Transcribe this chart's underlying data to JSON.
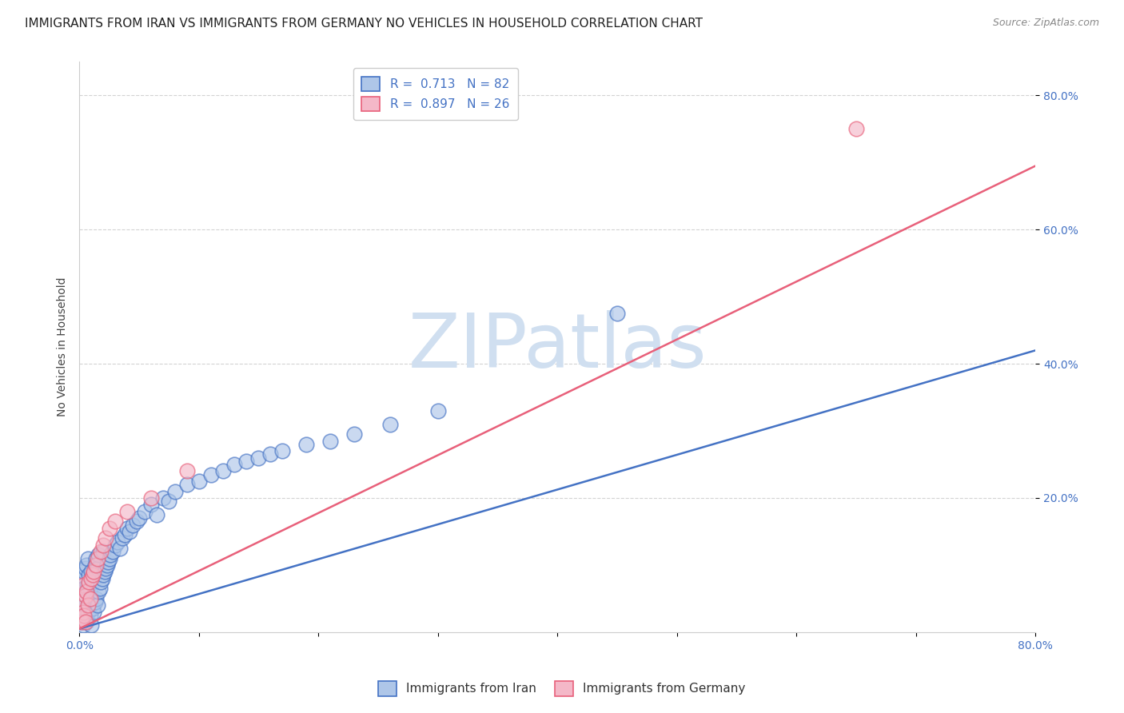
{
  "title": "IMMIGRANTS FROM IRAN VS IMMIGRANTS FROM GERMANY NO VEHICLES IN HOUSEHOLD CORRELATION CHART",
  "source": "Source: ZipAtlas.com",
  "ylabel": "No Vehicles in Household",
  "xlim": [
    0.0,
    0.8
  ],
  "ylim": [
    0.0,
    0.85
  ],
  "ytick_positions": [
    0.2,
    0.4,
    0.6,
    0.8
  ],
  "ytick_labels": [
    "20.0%",
    "40.0%",
    "60.0%",
    "80.0%"
  ],
  "iran_R": 0.713,
  "iran_N": 82,
  "germany_R": 0.897,
  "germany_N": 26,
  "iran_color": "#aec6e8",
  "iran_line_color": "#4472c4",
  "germany_color": "#f4b8c8",
  "germany_line_color": "#e8607a",
  "iran_line": [
    0.0,
    0.005,
    0.42
  ],
  "germany_line": [
    0.0,
    0.005,
    0.695
  ],
  "iran_scatter_x": [
    0.001,
    0.001,
    0.002,
    0.002,
    0.002,
    0.003,
    0.003,
    0.003,
    0.004,
    0.004,
    0.004,
    0.005,
    0.005,
    0.005,
    0.006,
    0.006,
    0.006,
    0.007,
    0.007,
    0.007,
    0.008,
    0.008,
    0.009,
    0.009,
    0.01,
    0.01,
    0.01,
    0.011,
    0.011,
    0.012,
    0.012,
    0.013,
    0.013,
    0.014,
    0.014,
    0.015,
    0.015,
    0.016,
    0.016,
    0.017,
    0.018,
    0.019,
    0.02,
    0.02,
    0.021,
    0.022,
    0.023,
    0.024,
    0.025,
    0.026,
    0.028,
    0.03,
    0.032,
    0.034,
    0.036,
    0.038,
    0.04,
    0.042,
    0.045,
    0.048,
    0.05,
    0.055,
    0.06,
    0.065,
    0.07,
    0.075,
    0.08,
    0.09,
    0.1,
    0.11,
    0.12,
    0.13,
    0.14,
    0.15,
    0.16,
    0.17,
    0.19,
    0.21,
    0.23,
    0.26,
    0.3,
    0.45
  ],
  "iran_scatter_y": [
    0.02,
    0.06,
    0.035,
    0.015,
    0.075,
    0.01,
    0.045,
    0.08,
    0.025,
    0.065,
    0.09,
    0.02,
    0.055,
    0.095,
    0.015,
    0.06,
    0.1,
    0.03,
    0.07,
    0.11,
    0.04,
    0.085,
    0.025,
    0.065,
    0.01,
    0.05,
    0.09,
    0.035,
    0.075,
    0.03,
    0.08,
    0.045,
    0.1,
    0.05,
    0.11,
    0.04,
    0.095,
    0.06,
    0.115,
    0.065,
    0.075,
    0.08,
    0.085,
    0.12,
    0.09,
    0.095,
    0.1,
    0.105,
    0.11,
    0.115,
    0.12,
    0.13,
    0.135,
    0.125,
    0.14,
    0.145,
    0.155,
    0.15,
    0.16,
    0.165,
    0.17,
    0.18,
    0.19,
    0.175,
    0.2,
    0.195,
    0.21,
    0.22,
    0.225,
    0.235,
    0.24,
    0.25,
    0.255,
    0.26,
    0.265,
    0.27,
    0.28,
    0.285,
    0.295,
    0.31,
    0.33,
    0.475
  ],
  "germany_scatter_x": [
    0.001,
    0.002,
    0.002,
    0.003,
    0.003,
    0.004,
    0.005,
    0.005,
    0.006,
    0.007,
    0.008,
    0.009,
    0.01,
    0.011,
    0.012,
    0.014,
    0.015,
    0.018,
    0.02,
    0.022,
    0.025,
    0.03,
    0.04,
    0.06,
    0.09,
    0.65
  ],
  "germany_scatter_y": [
    0.02,
    0.015,
    0.045,
    0.03,
    0.07,
    0.025,
    0.015,
    0.055,
    0.06,
    0.04,
    0.075,
    0.05,
    0.08,
    0.085,
    0.09,
    0.1,
    0.11,
    0.12,
    0.13,
    0.14,
    0.155,
    0.165,
    0.18,
    0.2,
    0.24,
    0.75
  ],
  "watermark": "ZIPatlas",
  "watermark_color": "#d0dff0",
  "background_color": "#ffffff",
  "grid_color": "#c8c8c8",
  "title_fontsize": 11,
  "axis_label_fontsize": 10,
  "tick_fontsize": 10,
  "legend_fontsize": 11
}
